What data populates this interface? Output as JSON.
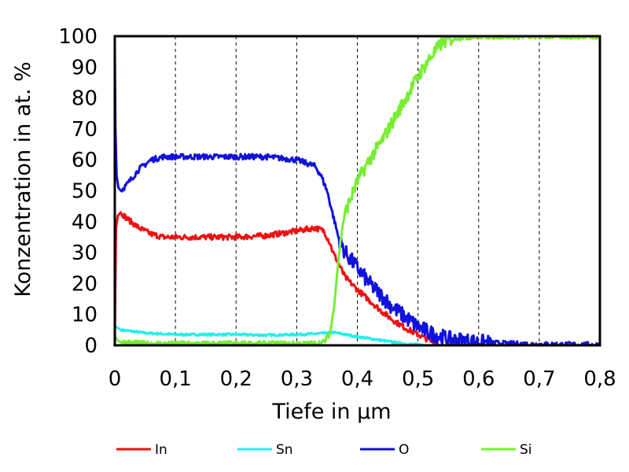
{
  "chart_data": {
    "type": "line",
    "xlabel": "Tiefe in µm",
    "ylabel": "Konzentration in at. %",
    "xlim": [
      0,
      0.8
    ],
    "ylim": [
      0,
      100
    ],
    "xticks": [
      0,
      0.1,
      0.2,
      0.3,
      0.4,
      0.5,
      0.6,
      0.7,
      0.8
    ],
    "xtick_labels": [
      "0",
      "0,1",
      "0,2",
      "0,3",
      "0,4",
      "0,5",
      "0,6",
      "0,7",
      "0,8"
    ],
    "yticks": [
      0,
      10,
      20,
      30,
      40,
      50,
      60,
      70,
      80,
      90,
      100
    ],
    "ytick_labels": [
      "0",
      "10",
      "20",
      "30",
      "40",
      "50",
      "60",
      "70",
      "80",
      "90",
      "100"
    ],
    "grid": "vertical",
    "legend_position": "bottom",
    "series": [
      {
        "name": "In",
        "color": "#ee1111",
        "x": [
          0,
          0.002,
          0.005,
          0.01,
          0.02,
          0.04,
          0.06,
          0.08,
          0.1,
          0.15,
          0.2,
          0.25,
          0.3,
          0.33,
          0.345,
          0.355,
          0.36,
          0.37,
          0.38,
          0.4,
          0.42,
          0.44,
          0.46,
          0.48,
          0.5,
          0.52,
          0.535
        ],
        "y": [
          0,
          38,
          42,
          43,
          41,
          38,
          36,
          35,
          35,
          35,
          35,
          35.5,
          37,
          38,
          37,
          33,
          30,
          26,
          22,
          18,
          14.5,
          11,
          8,
          5.5,
          3.5,
          1.5,
          0.5
        ]
      },
      {
        "name": "Sn",
        "color": "#22eeee",
        "x": [
          0,
          0.002,
          0.01,
          0.03,
          0.05,
          0.1,
          0.15,
          0.2,
          0.25,
          0.3,
          0.34,
          0.35,
          0.36,
          0.38,
          0.4,
          0.42,
          0.44,
          0.46,
          0.48,
          0.5,
          0.52
        ],
        "y": [
          6.5,
          6,
          5,
          4.5,
          4,
          3.5,
          3.5,
          3.5,
          3.3,
          3.5,
          3.8,
          4,
          4.2,
          3.5,
          2.8,
          2.2,
          1.6,
          1,
          0.5,
          0.2,
          0
        ]
      },
      {
        "name": "O",
        "color": "#1111dd",
        "x": [
          0,
          0.001,
          0.003,
          0.006,
          0.01,
          0.02,
          0.04,
          0.06,
          0.08,
          0.1,
          0.15,
          0.2,
          0.25,
          0.3,
          0.33,
          0.34,
          0.35,
          0.36,
          0.37,
          0.38,
          0.4,
          0.42,
          0.44,
          0.46,
          0.48,
          0.5,
          0.52,
          0.55,
          0.6,
          0.65,
          0.7,
          0.75,
          0.8
        ],
        "y": [
          96,
          70,
          55,
          51,
          50,
          52,
          57,
          60,
          61,
          61,
          61,
          61,
          61,
          60,
          58,
          55,
          50,
          42,
          34,
          30,
          25,
          20,
          16,
          12,
          9,
          6,
          4,
          2,
          1,
          0.5,
          0.3,
          0.2,
          0.1
        ]
      },
      {
        "name": "Si",
        "color": "#77ee33",
        "x": [
          0,
          0.005,
          0.01,
          0.05,
          0.1,
          0.2,
          0.3,
          0.33,
          0.345,
          0.355,
          0.36,
          0.365,
          0.37,
          0.375,
          0.38,
          0.39,
          0.4,
          0.42,
          0.44,
          0.46,
          0.48,
          0.5,
          0.52,
          0.54,
          0.56,
          0.6,
          0.65,
          0.7,
          0.75,
          0.8
        ],
        "y": [
          3,
          1.5,
          1,
          0.5,
          0.5,
          0.5,
          0.5,
          0.5,
          1,
          4,
          10,
          20,
          30,
          38,
          43,
          48,
          53,
          60,
          66,
          73,
          80,
          87,
          93,
          98,
          99.5,
          100,
          100,
          100,
          100,
          100
        ]
      }
    ]
  }
}
